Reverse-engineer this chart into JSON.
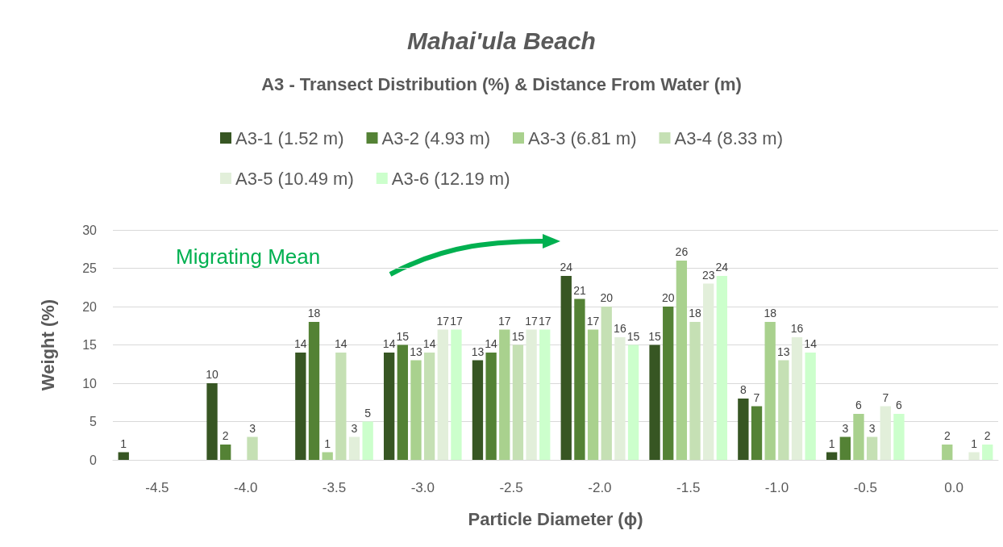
{
  "chart_data": {
    "type": "bar",
    "title": "Mahai'ula Beach",
    "subtitle": "A3 - Transect Distribution (%) & Distance From Water (m)",
    "xlabel": "Particle Diameter (ϕ)",
    "ylabel": "Weight (%)",
    "categories": [
      "-4.5",
      "-4.0",
      "-3.5",
      "-3.0",
      "-2.5",
      "-2.0",
      "-1.5",
      "-1.0",
      "-0.5",
      "0.0"
    ],
    "series": [
      {
        "name": "A3-1 (1.52 m)",
        "color": "#375623",
        "values": [
          1,
          10,
          14,
          14,
          13,
          24,
          15,
          8,
          1,
          null
        ]
      },
      {
        "name": "A3-2 (4.93 m)",
        "color": "#548235",
        "values": [
          null,
          2,
          18,
          15,
          14,
          21,
          20,
          7,
          3,
          null
        ]
      },
      {
        "name": "A3-3 (6.81 m)",
        "color": "#a9d18e",
        "values": [
          null,
          null,
          1,
          13,
          17,
          17,
          26,
          18,
          6,
          2
        ]
      },
      {
        "name": "A3-4 (8.33 m)",
        "color": "#c5e0b4",
        "values": [
          null,
          3,
          14,
          14,
          15,
          20,
          18,
          13,
          3,
          null
        ]
      },
      {
        "name": "A3-5 (10.49 m)",
        "color": "#e2efda",
        "values": [
          null,
          null,
          3,
          17,
          17,
          16,
          23,
          16,
          7,
          1
        ]
      },
      {
        "name": "A3-6 (12.19 m)",
        "color": "#ccffcc",
        "values": [
          null,
          null,
          5,
          17,
          17,
          15,
          24,
          14,
          6,
          2
        ]
      }
    ],
    "ylim": [
      0,
      30
    ],
    "yticks": [
      0,
      5,
      10,
      15,
      20,
      25,
      30
    ],
    "grid": "y",
    "legend": "top",
    "data_labels": true,
    "annotations": [
      "Migrating Mean"
    ]
  }
}
